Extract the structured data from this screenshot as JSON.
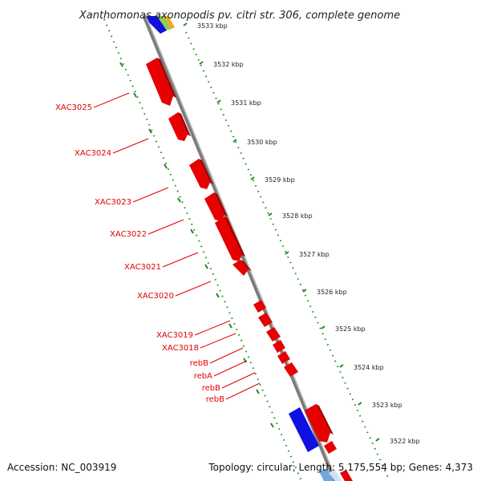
{
  "title": "Xanthomonas axonopodis pv. citri str. 306, complete genome",
  "accession_label": "Accession: NC_003919",
  "summary_label": "Topology: circular; Length: 5,175,554 bp; Genes: 4,373",
  "colors": {
    "forward_gene": "#e60000",
    "forward_gene_shade": "#a60000",
    "other_gene": "#1010e0",
    "backbone": "#808080",
    "tick": "#1e8a1e",
    "label": "#e00000"
  },
  "scale_ticks": [
    {
      "label": "3533 kbp"
    },
    {
      "label": "3532 kbp"
    },
    {
      "label": "3531 kbp"
    },
    {
      "label": "3530 kbp"
    },
    {
      "label": "3529 kbp"
    },
    {
      "label": "3528 kbp"
    },
    {
      "label": "3527 kbp"
    },
    {
      "label": "3526 kbp"
    },
    {
      "label": "3525 kbp"
    },
    {
      "label": "3524 kbp"
    },
    {
      "label": "3523 kbp"
    },
    {
      "label": "3522 kbp"
    }
  ],
  "gene_labels": [
    {
      "name": "XAC3025"
    },
    {
      "name": "XAC3024"
    },
    {
      "name": "XAC3023"
    },
    {
      "name": "XAC3022"
    },
    {
      "name": "XAC3021"
    },
    {
      "name": "XAC3020"
    },
    {
      "name": "XAC3019"
    },
    {
      "name": "XAC3018"
    },
    {
      "name": "rebB"
    },
    {
      "name": "rebA"
    },
    {
      "name": "rebB"
    },
    {
      "name": "rebB"
    }
  ]
}
